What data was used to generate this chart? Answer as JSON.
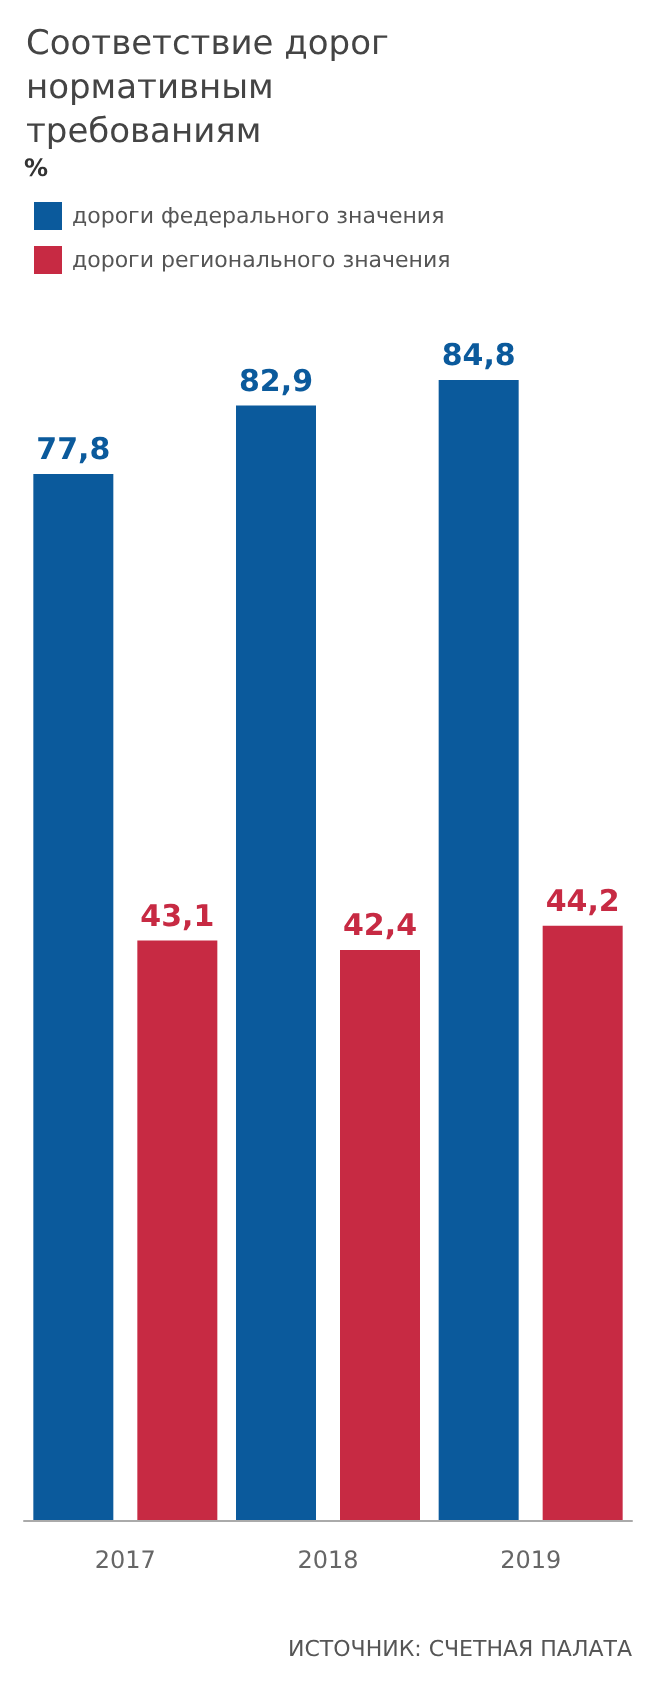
{
  "chart_data": {
    "type": "bar",
    "title": "Соответствие дорог нормативным требованиям",
    "categories": [
      "2017",
      "2018",
      "2019"
    ],
    "series": [
      {
        "name": "дороги федерального значения",
        "color": "#0b5a9c",
        "values": [
          77.8,
          82.9,
          84.8
        ],
        "value_labels": [
          "77,8",
          "82,9",
          "84,8"
        ]
      },
      {
        "name": "дороги регионального значения",
        "color": "#c72a43",
        "values": [
          43.1,
          42.4,
          44.2
        ],
        "value_labels": [
          "43,1",
          "42,4",
          "44,2"
        ]
      }
    ],
    "legend": "top left",
    "annotations": [
      "%",
      "ИСТОЧНИК: СЧЕТНАЯ ПАЛАТА"
    ]
  }
}
